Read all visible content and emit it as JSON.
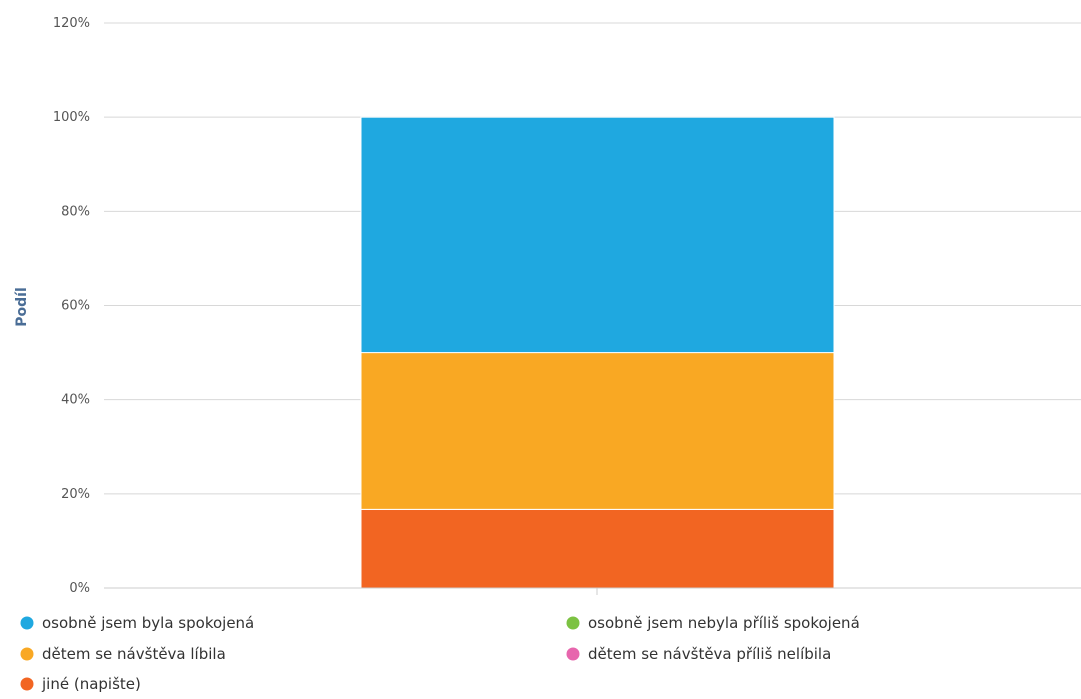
{
  "chart_data": {
    "type": "bar",
    "stacked": true,
    "categories": [
      ""
    ],
    "ylabel": "Podíl",
    "ylim": [
      0,
      120
    ],
    "yticks": [
      0,
      20,
      40,
      60,
      80,
      100,
      120
    ],
    "ytick_labels": [
      "0%",
      "20%",
      "40%",
      "60%",
      "80%",
      "100%",
      "120%"
    ],
    "grid": true,
    "legend": "bottom",
    "series": [
      {
        "name": "osobně jsem byla spokojená",
        "values": [
          50
        ],
        "color": "#1fa8e0"
      },
      {
        "name": "osobně jsem nebyla příliš spokojená",
        "values": [
          0
        ],
        "color": "#7cc242"
      },
      {
        "name": "dětem se návštěva líbila",
        "values": [
          33.3
        ],
        "color": "#f9a823"
      },
      {
        "name": "dětem se návštěva příliš nelíbila",
        "values": [
          0
        ],
        "color": "#e766ad"
      },
      {
        "name": "jiné (napište)",
        "values": [
          16.7
        ],
        "color": "#f26522"
      }
    ]
  }
}
